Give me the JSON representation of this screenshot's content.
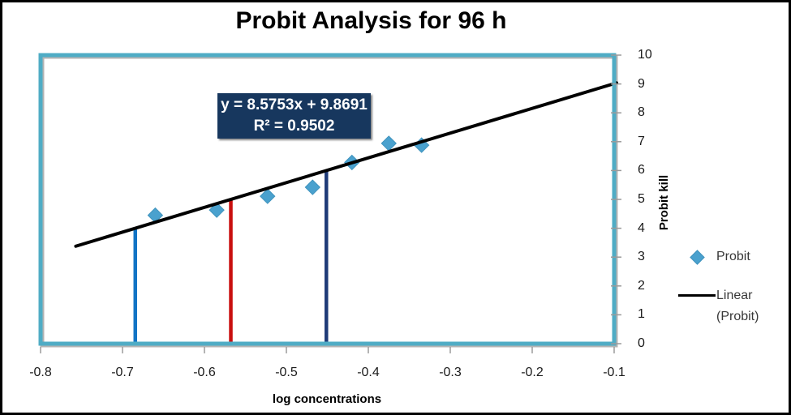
{
  "chart_data": {
    "type": "scatter",
    "title": "Probit Analysis for 96 h",
    "xlabel": "log concentrations",
    "ylabel": "Probit kill",
    "xlim": [
      -0.8,
      -0.1
    ],
    "ylim": [
      0,
      10
    ],
    "grid": false,
    "legend_position": "right",
    "x_ticks": [
      "-0.8",
      "-0.7",
      "-0.6",
      "-0.5",
      "-0.4",
      "-0.3",
      "-0.2",
      "-0.1"
    ],
    "y_ticks": [
      "0",
      "1",
      "2",
      "3",
      "4",
      "5",
      "6",
      "7",
      "8",
      "9",
      "10"
    ],
    "series": [
      {
        "name": "Probit",
        "kind": "scatter",
        "marker": "diamond",
        "color": "#4AA1CE",
        "points": [
          [
            -0.66,
            4.45
          ],
          [
            -0.585,
            4.63
          ],
          [
            -0.523,
            5.11
          ],
          [
            -0.468,
            5.42
          ],
          [
            -0.42,
            6.28
          ],
          [
            -0.375,
            6.94
          ],
          [
            -0.335,
            6.88
          ]
        ]
      },
      {
        "name": "Linear (Probit)",
        "kind": "trendline",
        "color": "#000000",
        "slope": 8.5753,
        "intercept": 9.8691,
        "x_range": [
          -0.757,
          -0.097
        ]
      }
    ],
    "reference_lines": [
      {
        "name": "lc16-drop-line",
        "x": -0.6844,
        "y_top": 4,
        "color": "#1274C5"
      },
      {
        "name": "lc50-drop-line",
        "x": -0.5678,
        "y_top": 5,
        "color": "#C9100F"
      },
      {
        "name": "lc84-drop-line",
        "x": -0.4512,
        "y_top": 6,
        "color": "#1F3B78"
      }
    ],
    "annotation": {
      "equation": "y = 8.5753x + 9.8691",
      "r_squared": "R² = 0.9502"
    },
    "legend": [
      {
        "label": "Probit",
        "marker": "diamond"
      },
      {
        "label": "Linear (Probit)",
        "marker": "line"
      }
    ],
    "colors": {
      "plot_border": "#4FACC5",
      "plot_border_shadow": "#b4b4b4",
      "equation_bg": "#17375E",
      "tick": "#9b9b9b"
    }
  }
}
